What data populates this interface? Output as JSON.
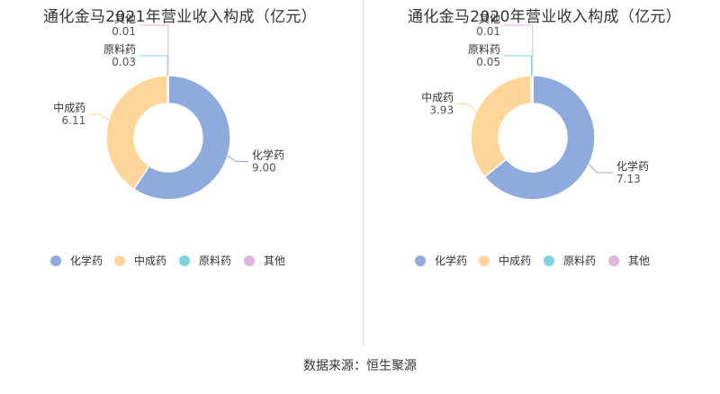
{
  "colors": {
    "化学药": "#8faadc",
    "中成药": "#ffd699",
    "原料药": "#7dd3de",
    "其他": "#e3b5dd"
  },
  "chart_data": [
    {
      "type": "pie",
      "title": "通化金马2021年营业收入构成（亿元）",
      "categories": [
        "化学药",
        "中成药",
        "原料药",
        "其他"
      ],
      "values": [
        9.0,
        6.11,
        0.03,
        0.01
      ],
      "value_labels": [
        "9.00",
        "6.11",
        "0.03",
        "0.01"
      ],
      "donut": true,
      "legend_position": "bottom"
    },
    {
      "type": "pie",
      "title": "通化金马2020年营业收入构成（亿元）",
      "categories": [
        "化学药",
        "中成药",
        "原料药",
        "其他"
      ],
      "values": [
        7.13,
        3.93,
        0.05,
        0.01
      ],
      "value_labels": [
        "7.13",
        "3.93",
        "0.05",
        "0.01"
      ],
      "donut": true,
      "legend_position": "bottom"
    }
  ],
  "source": "数据来源：恒生聚源"
}
